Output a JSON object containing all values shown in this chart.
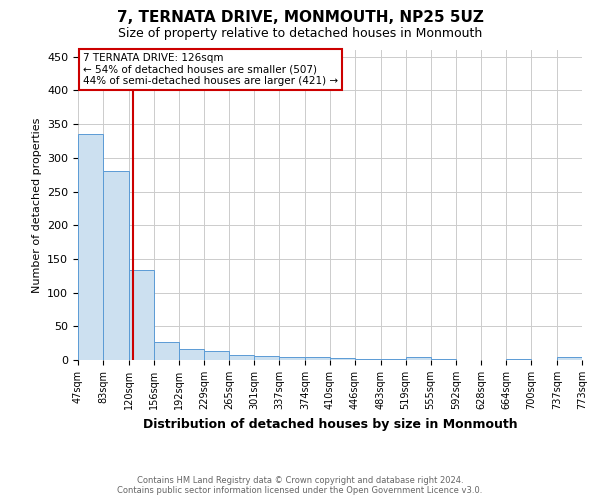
{
  "title": "7, TERNATA DRIVE, MONMOUTH, NP25 5UZ",
  "subtitle": "Size of property relative to detached houses in Monmouth",
  "xlabel": "Distribution of detached houses by size in Monmouth",
  "ylabel": "Number of detached properties",
  "footer_line1": "Contains HM Land Registry data © Crown copyright and database right 2024.",
  "footer_line2": "Contains public sector information licensed under the Open Government Licence v3.0.",
  "annotation_line1": "7 TERNATA DRIVE: 126sqm",
  "annotation_line2": "← 54% of detached houses are smaller (507)",
  "annotation_line3": "44% of semi-detached houses are larger (421) →",
  "property_line_x": 126,
  "bar_edges": [
    47,
    83,
    120,
    156,
    192,
    229,
    265,
    301,
    337,
    374,
    410,
    446,
    483,
    519,
    555,
    592,
    628,
    664,
    700,
    737,
    773
  ],
  "bar_heights": [
    335,
    280,
    133,
    27,
    17,
    13,
    8,
    6,
    5,
    4,
    3,
    1,
    1,
    4,
    1,
    0,
    0,
    1,
    0,
    4
  ],
  "bar_color": "#cce0f0",
  "bar_edge_color": "#5b9bd5",
  "vline_color": "#cc0000",
  "annotation_box_color": "#cc0000",
  "ylim": [
    0,
    460
  ],
  "yticks": [
    0,
    50,
    100,
    150,
    200,
    250,
    300,
    350,
    400,
    450
  ],
  "bg_color": "#ffffff",
  "grid_color": "#cccccc",
  "title_fontsize": 11,
  "subtitle_fontsize": 9,
  "ylabel_fontsize": 8,
  "xlabel_fontsize": 9,
  "tick_fontsize": 7,
  "annot_fontsize": 7.5,
  "footer_fontsize": 6
}
